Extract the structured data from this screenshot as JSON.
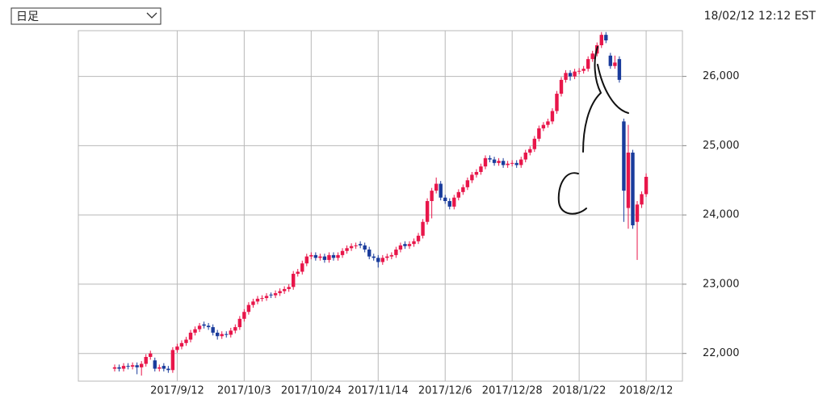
{
  "header": {
    "period_select": "日足",
    "timestamp": "18/02/12 12:12 EST"
  },
  "chart_data": {
    "type": "candlestick",
    "up_color": "#e8164a",
    "down_color": "#1a3c9c",
    "grid": true,
    "ylim": [
      21600,
      26660
    ],
    "yticks": [
      {
        "value": 22000,
        "label": "22,000"
      },
      {
        "value": 23000,
        "label": "23,000"
      },
      {
        "value": 24000,
        "label": "24,000"
      },
      {
        "value": 25000,
        "label": "25,000"
      },
      {
        "value": 26000,
        "label": "26,000"
      }
    ],
    "categories": [
      null,
      null,
      null,
      null,
      null,
      null,
      null,
      null,
      null,
      null,
      null,
      null,
      null,
      null,
      "2017/9/12",
      null,
      null,
      null,
      null,
      null,
      null,
      null,
      null,
      null,
      null,
      null,
      null,
      null,
      null,
      "2017/10/3",
      null,
      null,
      null,
      null,
      null,
      null,
      null,
      null,
      null,
      null,
      null,
      null,
      null,
      null,
      "2017/10/24",
      null,
      null,
      null,
      null,
      null,
      null,
      null,
      null,
      null,
      null,
      null,
      null,
      null,
      null,
      "2017/11/14",
      null,
      null,
      null,
      null,
      null,
      null,
      null,
      null,
      null,
      null,
      null,
      null,
      null,
      null,
      "2017/12/6",
      null,
      null,
      null,
      null,
      null,
      null,
      null,
      null,
      null,
      null,
      null,
      null,
      null,
      null,
      "2017/12/28",
      null,
      null,
      null,
      null,
      null,
      null,
      null,
      null,
      null,
      null,
      null,
      null,
      null,
      null,
      "2018/1/22",
      null,
      null,
      null,
      null,
      null,
      null,
      null,
      null,
      null,
      null,
      null,
      null,
      null,
      null,
      "2018/2/12"
    ],
    "ohlc": [
      [
        21780,
        21840,
        21740,
        21800
      ],
      [
        21800,
        21840,
        21740,
        21780
      ],
      [
        21780,
        21860,
        21740,
        21820
      ],
      [
        21820,
        21860,
        21770,
        21810
      ],
      [
        21810,
        21870,
        21770,
        21830
      ],
      [
        21830,
        21870,
        21700,
        21800
      ],
      [
        21800,
        21890,
        21680,
        21850
      ],
      [
        21850,
        21990,
        21810,
        21950
      ],
      [
        21950,
        22040,
        21910,
        22000
      ],
      [
        21900,
        21940,
        21740,
        21780
      ],
      [
        21780,
        21840,
        21740,
        21800
      ],
      [
        21820,
        21860,
        21740,
        21780
      ],
      [
        21780,
        21820,
        21720,
        21760
      ],
      [
        21760,
        22090,
        21720,
        22050
      ],
      [
        22050,
        22140,
        22010,
        22100
      ],
      [
        22100,
        22190,
        22060,
        22150
      ],
      [
        22150,
        22240,
        22110,
        22200
      ],
      [
        22200,
        22340,
        22160,
        22300
      ],
      [
        22300,
        22390,
        22260,
        22350
      ],
      [
        22350,
        22440,
        22310,
        22400
      ],
      [
        22420,
        22460,
        22360,
        22400
      ],
      [
        22400,
        22440,
        22340,
        22380
      ],
      [
        22380,
        22420,
        22260,
        22300
      ],
      [
        22300,
        22340,
        22200,
        22250
      ],
      [
        22250,
        22320,
        22210,
        22280
      ],
      [
        22280,
        22320,
        22230,
        22270
      ],
      [
        22270,
        22370,
        22230,
        22330
      ],
      [
        22330,
        22420,
        22290,
        22380
      ],
      [
        22380,
        22540,
        22340,
        22500
      ],
      [
        22500,
        22640,
        22460,
        22600
      ],
      [
        22600,
        22740,
        22560,
        22700
      ],
      [
        22700,
        22790,
        22660,
        22750
      ],
      [
        22750,
        22830,
        22710,
        22790
      ],
      [
        22790,
        22840,
        22750,
        22800
      ],
      [
        22800,
        22870,
        22760,
        22830
      ],
      [
        22850,
        22880,
        22800,
        22840
      ],
      [
        22840,
        22910,
        22800,
        22870
      ],
      [
        22870,
        22940,
        22830,
        22900
      ],
      [
        22900,
        22970,
        22860,
        22930
      ],
      [
        22930,
        23000,
        22890,
        22960
      ],
      [
        22960,
        23190,
        22920,
        23150
      ],
      [
        23150,
        23220,
        23110,
        23180
      ],
      [
        23180,
        23340,
        23140,
        23300
      ],
      [
        23300,
        23440,
        23260,
        23400
      ],
      [
        23400,
        23460,
        23360,
        23420
      ],
      [
        23420,
        23460,
        23340,
        23380
      ],
      [
        23380,
        23440,
        23340,
        23400
      ],
      [
        23400,
        23440,
        23310,
        23350
      ],
      [
        23350,
        23460,
        23310,
        23420
      ],
      [
        23420,
        23460,
        23340,
        23380
      ],
      [
        23380,
        23460,
        23340,
        23420
      ],
      [
        23420,
        23520,
        23380,
        23480
      ],
      [
        23480,
        23560,
        23440,
        23520
      ],
      [
        23520,
        23590,
        23480,
        23550
      ],
      [
        23550,
        23600,
        23510,
        23560
      ],
      [
        23580,
        23620,
        23520,
        23560
      ],
      [
        23560,
        23600,
        23460,
        23500
      ],
      [
        23500,
        23540,
        23360,
        23400
      ],
      [
        23400,
        23440,
        23340,
        23380
      ],
      [
        23380,
        23420,
        23240,
        23320
      ],
      [
        23320,
        23420,
        23280,
        23380
      ],
      [
        23380,
        23440,
        23340,
        23400
      ],
      [
        23400,
        23460,
        23360,
        23420
      ],
      [
        23420,
        23540,
        23380,
        23500
      ],
      [
        23500,
        23600,
        23460,
        23560
      ],
      [
        23580,
        23620,
        23510,
        23550
      ],
      [
        23550,
        23620,
        23510,
        23580
      ],
      [
        23580,
        23660,
        23540,
        23620
      ],
      [
        23620,
        23740,
        23580,
        23700
      ],
      [
        23700,
        23940,
        23660,
        23900
      ],
      [
        23900,
        24240,
        23860,
        24200
      ],
      [
        24200,
        24390,
        23950,
        24350
      ],
      [
        24350,
        24540,
        24310,
        24450
      ],
      [
        24450,
        24490,
        24210,
        24250
      ],
      [
        24250,
        24290,
        24160,
        24200
      ],
      [
        24200,
        24240,
        24080,
        24120
      ],
      [
        24120,
        24290,
        24080,
        24250
      ],
      [
        24250,
        24370,
        24210,
        24330
      ],
      [
        24330,
        24440,
        24290,
        24400
      ],
      [
        24400,
        24540,
        24360,
        24500
      ],
      [
        24500,
        24620,
        24460,
        24580
      ],
      [
        24580,
        24660,
        24540,
        24620
      ],
      [
        24620,
        24740,
        24580,
        24700
      ],
      [
        24700,
        24860,
        24660,
        24820
      ],
      [
        24820,
        24860,
        24760,
        24800
      ],
      [
        24800,
        24840,
        24710,
        24750
      ],
      [
        24750,
        24820,
        24710,
        24780
      ],
      [
        24780,
        24820,
        24680,
        24720
      ],
      [
        24720,
        24780,
        24680,
        24740
      ],
      [
        24740,
        24790,
        24700,
        24750
      ],
      [
        24750,
        24790,
        24680,
        24720
      ],
      [
        24720,
        24840,
        24680,
        24800
      ],
      [
        24800,
        24940,
        24760,
        24900
      ],
      [
        24900,
        24990,
        24860,
        24950
      ],
      [
        24950,
        25140,
        24910,
        25100
      ],
      [
        25100,
        25290,
        25060,
        25250
      ],
      [
        25250,
        25340,
        25210,
        25300
      ],
      [
        25300,
        25390,
        25260,
        25350
      ],
      [
        25350,
        25540,
        25310,
        25500
      ],
      [
        25500,
        25790,
        25460,
        25750
      ],
      [
        25750,
        25990,
        25710,
        25950
      ],
      [
        25950,
        26090,
        25910,
        26050
      ],
      [
        26050,
        26090,
        25940,
        26000
      ],
      [
        26000,
        26110,
        25960,
        26070
      ],
      [
        26070,
        26120,
        26030,
        26080
      ],
      [
        26080,
        26150,
        26040,
        26110
      ],
      [
        26110,
        26290,
        26070,
        26250
      ],
      [
        26250,
        26370,
        26210,
        26330
      ],
      [
        26330,
        26490,
        26290,
        26450
      ],
      [
        26450,
        26640,
        26410,
        26600
      ],
      [
        26600,
        26640,
        26480,
        26520
      ],
      [
        26300,
        26340,
        26110,
        26150
      ],
      [
        26150,
        26300,
        26110,
        26200
      ],
      [
        26250,
        26290,
        25910,
        25950
      ],
      [
        25350,
        25390,
        23900,
        24350
      ],
      [
        24100,
        25300,
        23800,
        24900
      ],
      [
        24900,
        24940,
        23800,
        23850
      ],
      [
        23900,
        24200,
        23350,
        24150
      ],
      [
        24150,
        24340,
        24100,
        24300
      ],
      [
        24300,
        24600,
        24260,
        24550
      ]
    ]
  }
}
